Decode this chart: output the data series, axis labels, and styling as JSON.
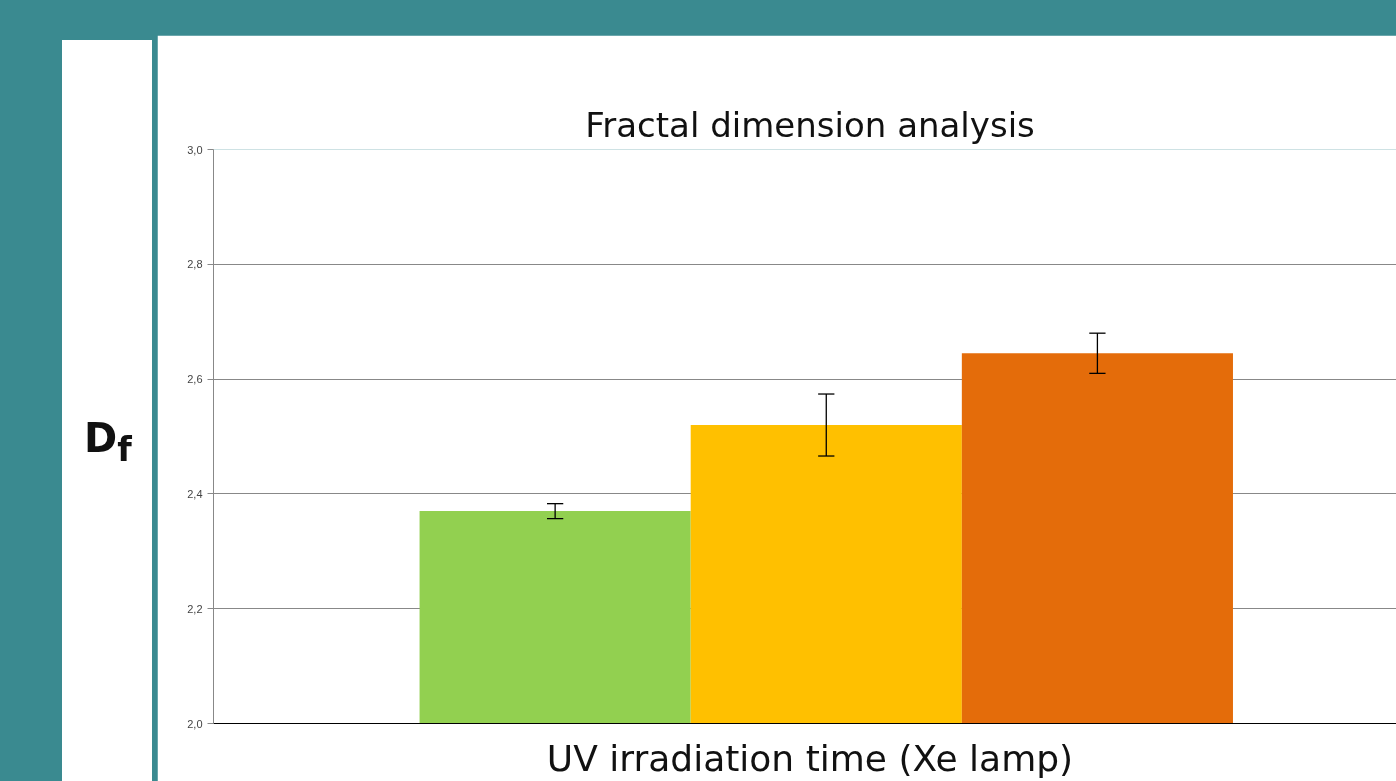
{
  "chart_data": {
    "type": "bar",
    "title": "Fractal dimension analysis",
    "xlabel": "UV irradiation time (Xe lamp)",
    "ylabel": "D$_{f}$",
    "categories": [
      null,
      null,
      null
    ],
    "values": [
      2.37,
      2.52,
      2.645
    ],
    "errors": [
      0.013,
      0.054,
      0.035
    ],
    "colors": [
      "#92d050",
      "#ffc000",
      "#e46c0a"
    ],
    "ylim": [
      2.0,
      3.0
    ],
    "yticks": [
      {
        "value": 2.0,
        "label": "2,0"
      },
      {
        "value": 2.2,
        "label": "2,2"
      },
      {
        "value": 2.4,
        "label": "2,4"
      },
      {
        "value": 2.6,
        "label": "2,6"
      },
      {
        "value": 2.8,
        "label": "2,8"
      },
      {
        "value": 3.0,
        "label": "3,0"
      }
    ],
    "grid": "y"
  }
}
